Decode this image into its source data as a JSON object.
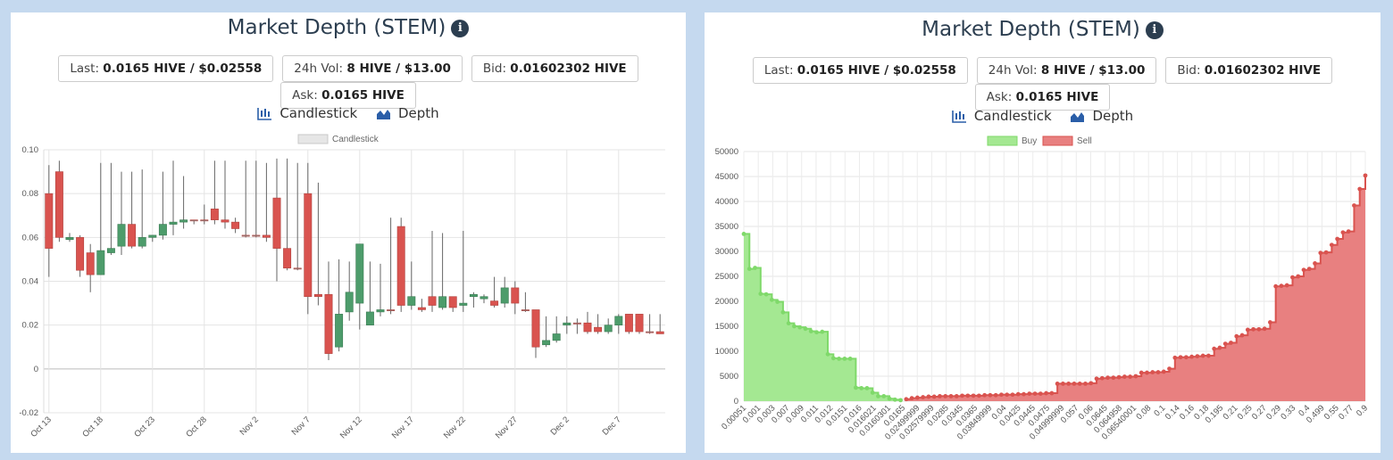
{
  "left": {
    "title": "Market Depth (STEM)",
    "stats": [
      {
        "label": "Last: ",
        "value": "0.0165 HIVE / $0.02558"
      },
      {
        "label": "24h Vol: ",
        "value": "8 HIVE / $13.00"
      },
      {
        "label": "Bid: ",
        "value": "0.01602302 HIVE"
      },
      {
        "label": "Ask: ",
        "value": "0.0165 HIVE"
      }
    ],
    "toggles": {
      "candlestick": "Candlestick",
      "depth": "Depth"
    }
  },
  "right": {
    "title": "Market Depth (STEM)",
    "stats": [
      {
        "label": "Last: ",
        "value": "0.0165 HIVE / $0.02558"
      },
      {
        "label": "24h Vol: ",
        "value": "8 HIVE / $13.00"
      },
      {
        "label": "Bid: ",
        "value": "0.01602302 HIVE"
      },
      {
        "label": "Ask: ",
        "value": "0.0165 HIVE"
      }
    ],
    "toggles": {
      "candlestick": "Candlestick",
      "depth": "Depth"
    }
  },
  "colors": {
    "up": "#4d9c6b",
    "down": "#d9534f",
    "buy": "#a4e892",
    "buy_line": "#7fd96a",
    "sell": "#e88080",
    "sell_line": "#d9534f",
    "title": "#2c3e50",
    "toggle_icon": "#2a5ea8"
  },
  "chart_data": [
    {
      "type": "candlestick",
      "legend": [
        "Candlestick"
      ],
      "legend_position": "top",
      "grid": true,
      "ylim": [
        -0.02,
        0.1
      ],
      "yticks": [
        "0.10",
        "0.08",
        "0.06",
        "0.04",
        "0.02",
        "0",
        "-0.02"
      ],
      "ytick_values": [
        0.1,
        0.08,
        0.06,
        0.04,
        0.02,
        0,
        -0.02
      ],
      "xticks": [
        "Oct 13",
        "Oct 18",
        "Oct 23",
        "Oct 28",
        "Nov 2",
        "Nov 7",
        "Nov 12",
        "Nov 17",
        "Nov 22",
        "Nov 27",
        "Dec 2",
        "Dec 7"
      ],
      "dates": [
        "Oct 13",
        "Oct 14",
        "Oct 15",
        "Oct 16",
        "Oct 17",
        "Oct 18",
        "Oct 19",
        "Oct 20",
        "Oct 21",
        "Oct 22",
        "Oct 23",
        "Oct 24",
        "Oct 25",
        "Oct 26",
        "Oct 27",
        "Oct 28",
        "Oct 29",
        "Oct 30",
        "Oct 31",
        "Nov 1",
        "Nov 2",
        "Nov 3",
        "Nov 4",
        "Nov 5",
        "Nov 6",
        "Nov 7",
        "Nov 8",
        "Nov 9",
        "Nov 10",
        "Nov 11",
        "Nov 12",
        "Nov 13",
        "Nov 14",
        "Nov 15",
        "Nov 16",
        "Nov 17",
        "Nov 18",
        "Nov 19",
        "Nov 20",
        "Nov 21",
        "Nov 22",
        "Nov 23",
        "Nov 24",
        "Nov 25",
        "Nov 26",
        "Nov 27",
        "Nov 28",
        "Nov 29",
        "Nov 30",
        "Dec 1",
        "Dec 2",
        "Dec 3",
        "Dec 4",
        "Dec 5",
        "Dec 6",
        "Dec 7",
        "Dec 8",
        "Dec 9",
        "Dec 10",
        "Dec 11"
      ],
      "open": [
        0.08,
        0.09,
        0.059,
        0.06,
        0.053,
        0.043,
        0.053,
        0.056,
        0.066,
        0.056,
        0.06,
        0.061,
        0.066,
        0.067,
        0.068,
        0.068,
        0.073,
        0.068,
        0.067,
        0.061,
        0.061,
        0.061,
        0.078,
        0.055,
        0.046,
        0.08,
        0.034,
        0.034,
        0.01,
        0.026,
        0.03,
        0.02,
        0.026,
        0.027,
        0.065,
        0.029,
        0.028,
        0.033,
        0.028,
        0.033,
        0.029,
        0.033,
        0.032,
        0.031,
        0.03,
        0.037,
        0.027,
        0.027,
        0.011,
        0.013,
        0.02,
        0.021,
        0.021,
        0.019,
        0.017,
        0.02,
        0.025,
        0.025,
        0.017,
        0.017
      ],
      "close": [
        0.055,
        0.06,
        0.06,
        0.045,
        0.043,
        0.054,
        0.055,
        0.066,
        0.056,
        0.06,
        0.061,
        0.066,
        0.067,
        0.068,
        0.068,
        0.068,
        0.068,
        0.067,
        0.064,
        0.061,
        0.061,
        0.06,
        0.055,
        0.046,
        0.046,
        0.033,
        0.033,
        0.007,
        0.025,
        0.035,
        0.057,
        0.026,
        0.027,
        0.027,
        0.029,
        0.033,
        0.027,
        0.029,
        0.033,
        0.028,
        0.03,
        0.034,
        0.033,
        0.029,
        0.037,
        0.03,
        0.027,
        0.01,
        0.013,
        0.016,
        0.021,
        0.021,
        0.017,
        0.017,
        0.02,
        0.024,
        0.017,
        0.017,
        0.017,
        0.016
      ],
      "high": [
        0.093,
        0.095,
        0.062,
        0.061,
        0.057,
        0.094,
        0.094,
        0.09,
        0.09,
        0.091,
        0.061,
        0.09,
        0.095,
        0.088,
        0.068,
        0.075,
        0.095,
        0.095,
        0.069,
        0.095,
        0.095,
        0.094,
        0.096,
        0.096,
        0.094,
        0.094,
        0.085,
        0.049,
        0.05,
        0.049,
        0.057,
        0.049,
        0.048,
        0.069,
        0.069,
        0.049,
        0.032,
        0.063,
        0.062,
        0.033,
        0.063,
        0.035,
        0.034,
        0.042,
        0.042,
        0.04,
        0.035,
        0.027,
        0.024,
        0.024,
        0.024,
        0.023,
        0.026,
        0.025,
        0.023,
        0.025,
        0.025,
        0.024,
        0.025,
        0.025
      ],
      "low": [
        0.042,
        0.058,
        0.058,
        0.042,
        0.035,
        0.043,
        0.052,
        0.052,
        0.055,
        0.055,
        0.058,
        0.059,
        0.061,
        0.064,
        0.066,
        0.066,
        0.066,
        0.064,
        0.062,
        0.06,
        0.06,
        0.058,
        0.04,
        0.045,
        0.045,
        0.025,
        0.029,
        0.004,
        0.008,
        0.022,
        0.018,
        0.02,
        0.024,
        0.025,
        0.026,
        0.027,
        0.026,
        0.026,
        0.027,
        0.026,
        0.026,
        0.028,
        0.03,
        0.028,
        0.028,
        0.025,
        0.026,
        0.005,
        0.01,
        0.012,
        0.016,
        0.016,
        0.016,
        0.016,
        0.016,
        0.016,
        0.016,
        0.016,
        0.016,
        0.016
      ]
    },
    {
      "type": "area",
      "legend": [
        "Buy",
        "Sell"
      ],
      "legend_position": "top",
      "grid": true,
      "ylim": [
        0,
        50000
      ],
      "yticks": [
        "50000",
        "45000",
        "40000",
        "35000",
        "30000",
        "25000",
        "20000",
        "15000",
        "10000",
        "5000",
        "0"
      ],
      "ytick_values": [
        50000,
        45000,
        40000,
        35000,
        30000,
        25000,
        20000,
        15000,
        10000,
        5000,
        0
      ],
      "xticks": [
        "0.00051",
        "0.001",
        "0.003",
        "0.007",
        "0.009",
        "0.011",
        "0.012",
        "0.0151",
        "0.016",
        "0.016021",
        "0.0160301",
        "0.0165",
        "0.02499999",
        "0.02579999",
        "0.0285",
        "0.0345",
        "0.0365",
        "0.03849999",
        "0.04",
        "0.0425",
        "0.0445",
        "0.0475",
        "0.04999999",
        "0.057",
        "0.06",
        "0.0645",
        "0.064958",
        "0.06540001",
        "0.08",
        "0.1",
        "0.14",
        "0.16",
        "0.18",
        "0.195",
        "0.21",
        "0.25",
        "0.27",
        "0.29",
        "0.33",
        "0.4",
        "0.499",
        "0.55",
        "0.77",
        "0.9"
      ],
      "series": [
        {
          "name": "Buy",
          "y": [
            33500,
            26500,
            26700,
            21500,
            21400,
            20300,
            19900,
            17800,
            15600,
            15000,
            14800,
            14500,
            14000,
            13800,
            13900,
            9400,
            8600,
            8500,
            8500,
            8500,
            2700,
            2600,
            2600,
            1700,
            1000,
            1000,
            500,
            300,
            200
          ]
        },
        {
          "name": "Sell",
          "y": [
            400,
            600,
            700,
            800,
            900,
            900,
            1000,
            1000,
            1000,
            1000,
            1100,
            1100,
            1100,
            1100,
            1200,
            1200,
            1200,
            1300,
            1300,
            1300,
            1400,
            1400,
            1500,
            1500,
            1500,
            1600,
            1600,
            3500,
            3500,
            3500,
            3500,
            3500,
            3500,
            3600,
            4500,
            4600,
            4700,
            4700,
            4800,
            4900,
            4900,
            5000,
            5700,
            5700,
            5800,
            5800,
            5900,
            6500,
            8700,
            8800,
            8800,
            8900,
            9000,
            9100,
            9100,
            10500,
            10700,
            11500,
            11700,
            13000,
            13200,
            14300,
            14400,
            14400,
            14500,
            15800,
            23000,
            23100,
            23200,
            24800,
            25000,
            26300,
            26500,
            27600,
            29700,
            29800,
            31300,
            32500,
            33800,
            34000,
            39200,
            42500,
            45200
          ]
        }
      ]
    }
  ]
}
